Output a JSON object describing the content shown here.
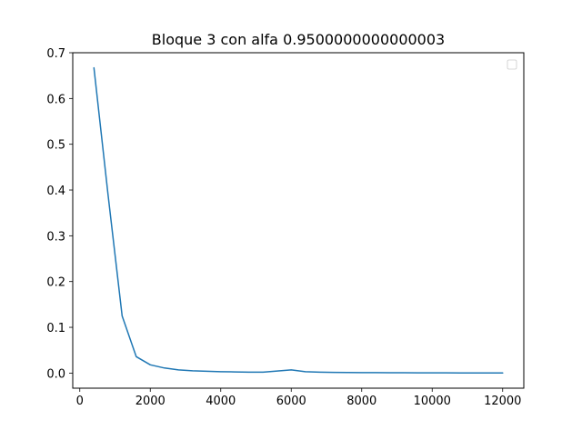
{
  "chart_data": {
    "type": "line",
    "title": "Bloque 3 con alfa 0.9500000000000003",
    "xlabel": "",
    "ylabel": "",
    "xlim": [
      -200,
      12600
    ],
    "ylim": [
      -0.033,
      0.7
    ],
    "x_ticks": [
      0,
      2000,
      4000,
      6000,
      8000,
      10000,
      12000
    ],
    "x_tick_labels": [
      "0",
      "2000",
      "4000",
      "6000",
      "8000",
      "10000",
      "12000"
    ],
    "y_ticks": [
      0.0,
      0.1,
      0.2,
      0.3,
      0.4,
      0.5,
      0.6,
      0.7
    ],
    "y_tick_labels": [
      "0.0",
      "0.1",
      "0.2",
      "0.3",
      "0.4",
      "0.5",
      "0.6",
      "0.7"
    ],
    "grid": false,
    "legend": "top-right",
    "legend_entries": [],
    "series": [
      {
        "color": "#1f77b4",
        "x": [
          400,
          800,
          1200,
          1600,
          2000,
          2400,
          2800,
          3200,
          3600,
          4000,
          4400,
          4800,
          5200,
          5600,
          6000,
          6400,
          6800,
          7200,
          7600,
          8000,
          8400,
          8800,
          9200,
          9600,
          10000,
          10400,
          10800,
          11200,
          11600,
          12000
        ],
        "y": [
          0.667,
          0.39,
          0.125,
          0.036,
          0.018,
          0.011,
          0.007,
          0.005,
          0.004,
          0.003,
          0.0025,
          0.002,
          0.002,
          0.0045,
          0.007,
          0.003,
          0.002,
          0.0015,
          0.0012,
          0.001,
          0.0009,
          0.0008,
          0.0007,
          0.0006,
          0.0005,
          0.0005,
          0.0004,
          0.0004,
          0.0003,
          0.0003
        ]
      }
    ]
  }
}
